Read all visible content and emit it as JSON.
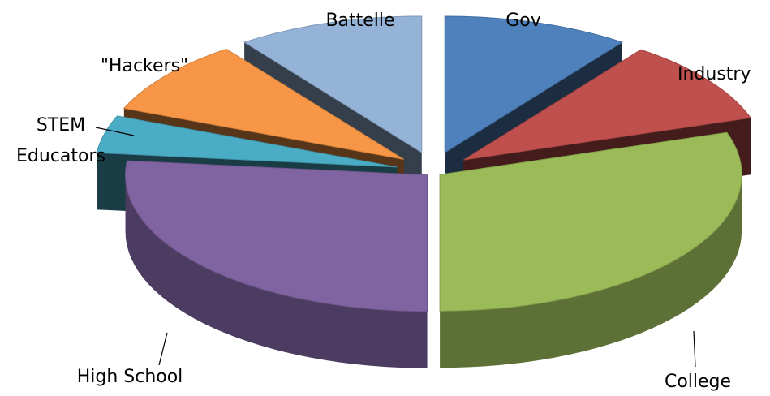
{
  "chart_data": {
    "type": "pie",
    "style": "3d-exploded",
    "title": "",
    "slices": [
      {
        "label": "Gov",
        "value": 9,
        "color": "#4f81bd"
      },
      {
        "label": "Industry",
        "value": 9,
        "color": "#c0504d"
      },
      {
        "label": "College",
        "value": 27,
        "color": "#9bbb59"
      },
      {
        "label": "High School",
        "value": 24,
        "color": "#8064a2"
      },
      {
        "label": "STEM Educators",
        "value": 4,
        "color": "#4bacc6"
      },
      {
        "label": "\"Hackers\"",
        "value": 8,
        "color": "#f79646"
      },
      {
        "label": "Battelle",
        "value": 9,
        "color": "#95b3d7"
      }
    ],
    "legend": "none"
  },
  "labels": {
    "battelle": "Battelle",
    "gov": "Gov",
    "industry": "Industry",
    "hackers": "\"Hackers\"",
    "stem_line1": "STEM",
    "stem_line2": "Educators",
    "high_school": "High School",
    "college": "College"
  }
}
